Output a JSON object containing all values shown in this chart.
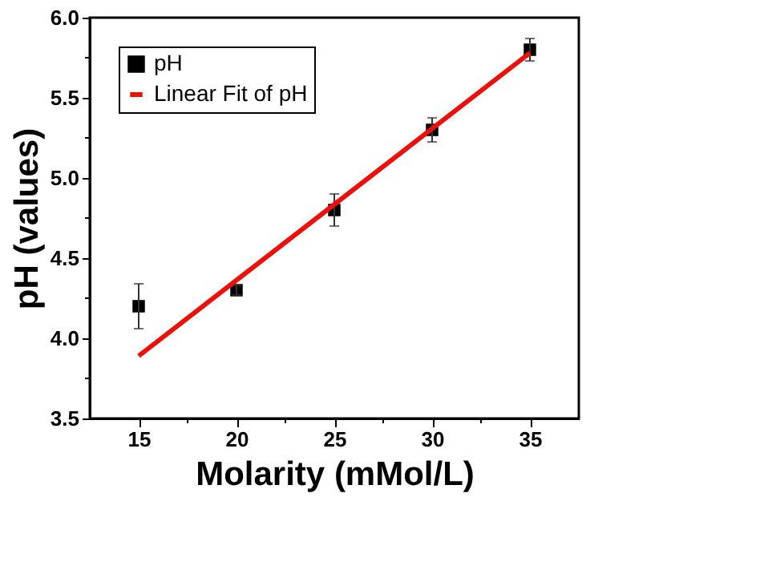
{
  "chart_data": {
    "type": "scatter",
    "xlabel": "Molarity (mMol/L)",
    "ylabel": "pH (values)",
    "x": [
      15,
      20,
      25,
      30,
      35
    ],
    "series": [
      {
        "name": "pH",
        "color": "#000000",
        "marker": "square",
        "values": [
          4.2,
          4.3,
          4.8,
          5.3,
          5.8
        ],
        "errors": [
          0.14,
          0.03,
          0.1,
          0.075,
          0.07
        ]
      },
      {
        "name": "Linear Fit of pH",
        "type": "line",
        "color": "#e8120c",
        "line_style": "solid",
        "x": [
          15,
          35
        ],
        "values": [
          3.89,
          5.78
        ]
      }
    ],
    "xlim": [
      12.5,
      37.5
    ],
    "ylim": [
      3.5,
      6.0
    ],
    "xticks": [
      15,
      {
        "value": 17.5,
        "label": null
      },
      20,
      {
        "value": 22.5,
        "label": null
      },
      25,
      {
        "value": 27.5,
        "label": null
      },
      30,
      {
        "value": 32.5,
        "label": null
      },
      35
    ],
    "yticks": [
      3.5,
      {
        "value": 3.75,
        "label": null
      },
      {
        "value": 4.0,
        "label": "4.0"
      },
      {
        "value": 4.25,
        "label": null
      },
      4.5,
      {
        "value": 4.75,
        "label": null
      },
      {
        "value": 5.0,
        "label": "5.0"
      },
      {
        "value": 5.25,
        "label": null
      },
      5.5,
      {
        "value": 5.75,
        "label": null
      },
      {
        "value": 6.0,
        "label": "6.0"
      }
    ],
    "grid": false,
    "legend": "top left"
  }
}
